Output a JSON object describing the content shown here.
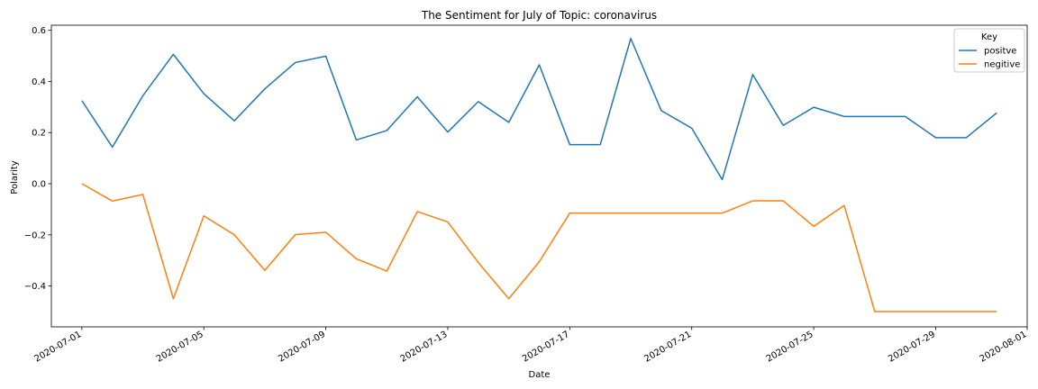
{
  "chart_data": {
    "type": "line",
    "title": "The Sentiment for July of Topic: coronavirus",
    "xlabel": "Date",
    "ylabel": "Polarity",
    "x": [
      "2020-07-01",
      "2020-07-02",
      "2020-07-03",
      "2020-07-04",
      "2020-07-05",
      "2020-07-06",
      "2020-07-07",
      "2020-07-08",
      "2020-07-09",
      "2020-07-10",
      "2020-07-11",
      "2020-07-12",
      "2020-07-13",
      "2020-07-14",
      "2020-07-15",
      "2020-07-16",
      "2020-07-17",
      "2020-07-18",
      "2020-07-19",
      "2020-07-20",
      "2020-07-21",
      "2020-07-22",
      "2020-07-23",
      "2020-07-24",
      "2020-07-25",
      "2020-07-26",
      "2020-07-27",
      "2020-07-28",
      "2020-07-29",
      "2020-07-30",
      "2020-07-31"
    ],
    "xlim": [
      "2020-06-30",
      "2020-08-01"
    ],
    "ylim": [
      -0.56,
      0.62
    ],
    "xticks": [
      "2020-07-01",
      "2020-07-05",
      "2020-07-09",
      "2020-07-13",
      "2020-07-17",
      "2020-07-21",
      "2020-07-25",
      "2020-07-29",
      "2020-08-01"
    ],
    "yticks": [
      -0.4,
      -0.2,
      0.0,
      0.2,
      0.4,
      0.6
    ],
    "ytick_labels": [
      "−0.4",
      "−0.2",
      "0.0",
      "0.2",
      "0.4",
      "0.6"
    ],
    "grid": false,
    "legend": {
      "title": "Key",
      "placement": "top-right"
    },
    "series": [
      {
        "name": "positve",
        "color": "#1f77b4",
        "values": [
          0.325,
          0.143,
          0.344,
          0.506,
          0.352,
          0.246,
          0.371,
          0.474,
          0.499,
          0.171,
          0.208,
          0.34,
          0.202,
          0.321,
          0.24,
          0.465,
          0.153,
          0.153,
          0.568,
          0.286,
          0.217,
          0.016,
          0.427,
          0.228,
          0.299,
          0.263,
          0.263,
          0.263,
          0.18,
          0.18,
          0.277
        ]
      },
      {
        "name": "negitive",
        "color": "#ff7f0e",
        "values": [
          0.0,
          -0.068,
          -0.042,
          -0.45,
          -0.126,
          -0.2,
          -0.339,
          -0.199,
          -0.19,
          -0.294,
          -0.342,
          -0.109,
          -0.15,
          -0.308,
          -0.45,
          -0.305,
          -0.115,
          -0.115,
          -0.115,
          -0.115,
          -0.115,
          -0.115,
          -0.067,
          -0.067,
          -0.167,
          -0.085,
          -0.5,
          -0.5,
          -0.5,
          -0.5,
          -0.5
        ]
      }
    ]
  }
}
